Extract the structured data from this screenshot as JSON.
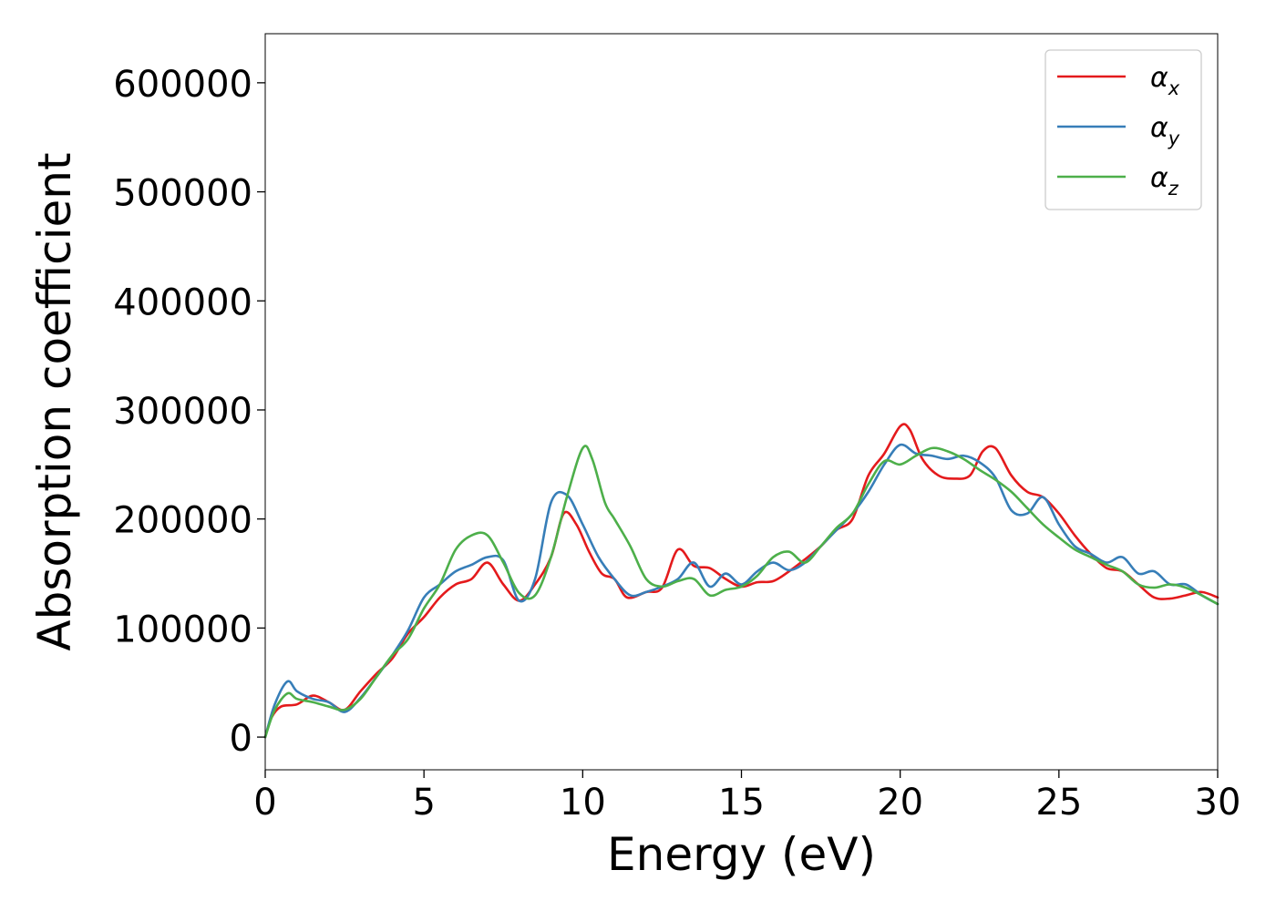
{
  "chart_data": {
    "type": "line",
    "xlabel": "Energy (eV)",
    "ylabel": "Absorption coefficient",
    "xlim": [
      0,
      30
    ],
    "ylim": [
      -30000,
      645000
    ],
    "xticks": [
      0,
      5,
      10,
      15,
      20,
      25,
      30
    ],
    "yticks": [
      0,
      100000,
      200000,
      300000,
      400000,
      500000,
      600000
    ],
    "grid": false,
    "legend_position": "top-right",
    "series": [
      {
        "name": "α_x",
        "label_base": "α",
        "label_sub": "x",
        "color": "#e41a1c",
        "x": [
          0,
          0.2,
          0.5,
          1.0,
          1.5,
          2.0,
          2.5,
          3.0,
          3.5,
          4.0,
          4.5,
          5.0,
          5.5,
          6.0,
          6.5,
          7.0,
          7.5,
          8.0,
          8.5,
          9.0,
          9.4,
          9.8,
          10.2,
          10.6,
          11.0,
          11.4,
          12.0,
          12.5,
          13.0,
          13.5,
          14.0,
          14.5,
          15.0,
          15.5,
          16.0,
          16.5,
          17.0,
          17.5,
          18.0,
          18.5,
          19.0,
          19.5,
          20.0,
          20.3,
          20.7,
          21.2,
          21.7,
          22.2,
          22.6,
          23.0,
          23.5,
          24.0,
          24.5,
          25.0,
          25.5,
          26.0,
          26.5,
          27.0,
          27.5,
          28.0,
          28.5,
          29.0,
          29.5,
          30.0
        ],
        "y": [
          0,
          18000,
          28000,
          30000,
          38000,
          32000,
          25000,
          42000,
          58000,
          72000,
          95000,
          110000,
          128000,
          140000,
          145000,
          160000,
          140000,
          125000,
          140000,
          165000,
          205000,
          195000,
          170000,
          150000,
          145000,
          128000,
          133000,
          137000,
          172000,
          157000,
          155000,
          145000,
          138000,
          142000,
          143000,
          152000,
          163000,
          175000,
          190000,
          200000,
          240000,
          260000,
          285000,
          282000,
          255000,
          240000,
          237000,
          240000,
          262000,
          265000,
          240000,
          225000,
          220000,
          205000,
          185000,
          168000,
          155000,
          152000,
          140000,
          128000,
          127000,
          130000,
          133000,
          128000
        ]
      },
      {
        "name": "α_y",
        "label_base": "α",
        "label_sub": "y",
        "color": "#377eb8",
        "x": [
          0,
          0.3,
          0.7,
          1.0,
          1.5,
          2.0,
          2.5,
          3.0,
          3.5,
          4.0,
          4.5,
          5.0,
          5.5,
          6.0,
          6.5,
          7.0,
          7.5,
          8.0,
          8.5,
          9.0,
          9.5,
          10.0,
          10.5,
          11.0,
          11.5,
          12.0,
          12.5,
          13.0,
          13.5,
          14.0,
          14.5,
          15.0,
          15.5,
          16.0,
          16.5,
          17.0,
          17.5,
          18.0,
          18.5,
          19.0,
          19.5,
          20.0,
          20.5,
          21.0,
          21.5,
          22.0,
          22.5,
          23.0,
          23.5,
          24.0,
          24.5,
          25.0,
          25.5,
          26.0,
          26.5,
          27.0,
          27.5,
          28.0,
          28.5,
          29.0,
          29.5,
          30.0
        ],
        "y": [
          0,
          30000,
          51000,
          42000,
          35000,
          32000,
          23000,
          36000,
          55000,
          75000,
          98000,
          128000,
          140000,
          152000,
          158000,
          165000,
          162000,
          125000,
          145000,
          215000,
          222000,
          195000,
          165000,
          145000,
          130000,
          133000,
          138000,
          145000,
          160000,
          138000,
          150000,
          140000,
          152000,
          160000,
          153000,
          160000,
          175000,
          190000,
          205000,
          225000,
          250000,
          268000,
          260000,
          258000,
          255000,
          258000,
          252000,
          238000,
          208000,
          205000,
          220000,
          195000,
          175000,
          168000,
          160000,
          165000,
          150000,
          152000,
          140000,
          140000,
          130000,
          122000
        ]
      },
      {
        "name": "α_z",
        "label_base": "α",
        "label_sub": "z",
        "color": "#4daf4a",
        "x": [
          0,
          0.3,
          0.7,
          1.0,
          1.5,
          2.0,
          2.5,
          3.0,
          3.5,
          4.0,
          4.5,
          5.0,
          5.5,
          6.0,
          6.5,
          7.0,
          7.5,
          8.0,
          8.5,
          9.0,
          9.5,
          10.0,
          10.3,
          10.7,
          11.0,
          11.5,
          12.0,
          12.5,
          13.0,
          13.5,
          14.0,
          14.5,
          15.0,
          15.5,
          16.0,
          16.5,
          17.0,
          17.5,
          18.0,
          18.5,
          19.0,
          19.5,
          20.0,
          20.5,
          21.0,
          21.5,
          22.0,
          22.5,
          23.0,
          23.5,
          24.0,
          24.5,
          25.0,
          25.5,
          26.0,
          26.5,
          27.0,
          27.5,
          28.0,
          28.5,
          29.0,
          29.5,
          30.0
        ],
        "y": [
          0,
          25000,
          40000,
          35000,
          32000,
          28000,
          25000,
          35000,
          55000,
          75000,
          90000,
          118000,
          140000,
          172000,
          185000,
          185000,
          160000,
          132000,
          130000,
          165000,
          220000,
          265000,
          255000,
          215000,
          200000,
          175000,
          145000,
          138000,
          143000,
          145000,
          130000,
          135000,
          138000,
          148000,
          165000,
          170000,
          160000,
          175000,
          192000,
          205000,
          232000,
          253000,
          250000,
          258000,
          265000,
          262000,
          255000,
          245000,
          236000,
          225000,
          210000,
          195000,
          183000,
          172000,
          165000,
          158000,
          152000,
          140000,
          137000,
          140000,
          137000,
          130000,
          122000
        ]
      }
    ]
  }
}
